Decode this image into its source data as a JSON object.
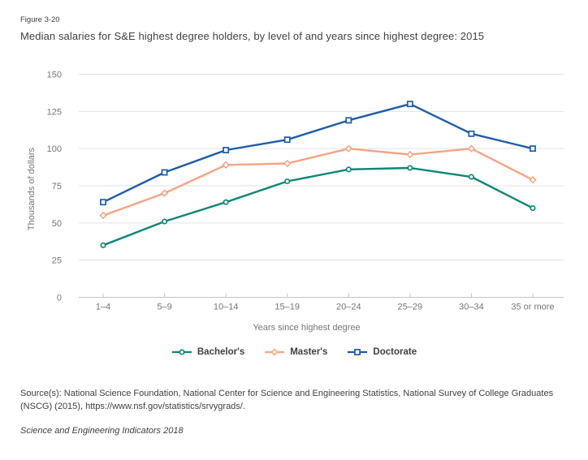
{
  "page": {
    "figure_label": "Figure 3-20",
    "title": "Median salaries for S&E highest degree holders, by level of and years since highest degree: 2015",
    "source": "Source(s): National Science Foundation, National Center for Science and Engineering Statistics, National Survey of College Graduates (NSCG) (2015), https://www.nsf.gov/statistics/srvygrads/.",
    "footer": "Science and Engineering Indicators 2018"
  },
  "chart_data": {
    "type": "line",
    "title": "Median salaries for S&E highest degree holders, by level of and years since highest degree: 2015",
    "categories": [
      "1–4",
      "5–9",
      "10–14",
      "15–19",
      "20–24",
      "25–29",
      "30–34",
      "35 or more"
    ],
    "series": [
      {
        "name": "Bachelor's",
        "marker": "circle",
        "color": "#0d8676",
        "values": [
          35,
          51,
          64,
          78,
          86,
          87,
          81,
          60
        ]
      },
      {
        "name": "Master's",
        "marker": "diamond",
        "color": "#f4a583",
        "values": [
          55,
          70,
          89,
          90,
          100,
          96,
          100,
          79
        ]
      },
      {
        "name": "Doctorate",
        "marker": "square",
        "color": "#1e5ca8",
        "values": [
          64,
          84,
          99,
          106,
          119,
          130,
          110,
          100
        ]
      }
    ],
    "xlabel": "Years since highest degree",
    "ylabel": "Thousands of dollars",
    "ylim": [
      0,
      150
    ],
    "ytick_step": 25,
    "grid": true,
    "legend_position": "bottom",
    "grid_color": "#e3e3e3",
    "axis_color": "#c4c4c4",
    "tick_color": "#767676"
  }
}
